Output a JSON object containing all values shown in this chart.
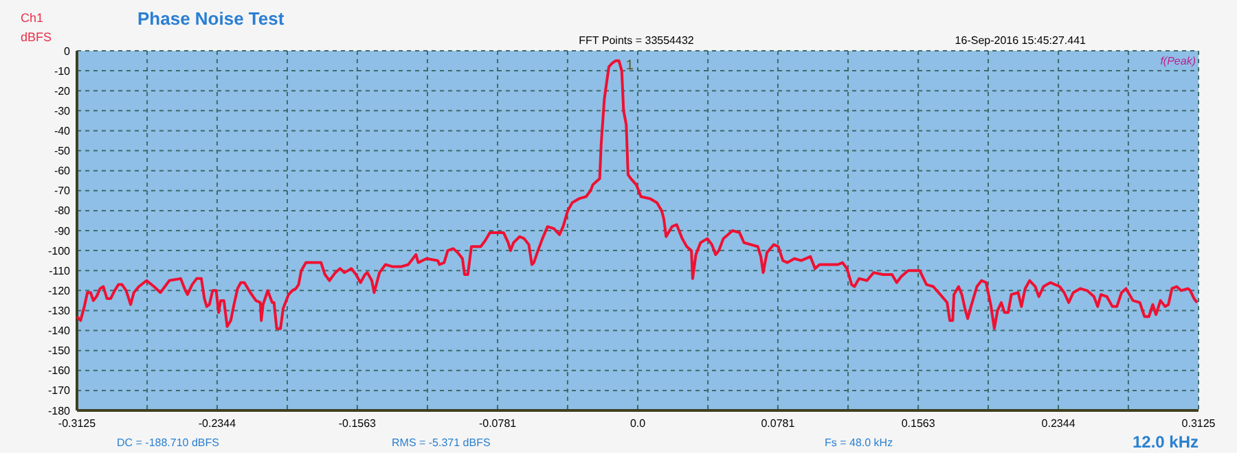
{
  "chart_data": {
    "type": "line",
    "title": "Phase Noise Test",
    "ylabel": "dBFS",
    "annotations": [
      "Ch1",
      "FFT Points = 33554432",
      "16-Sep-2016 15:45:27.441",
      "f(Peak)",
      "DC = -188.710 dBFS",
      "RMS = -5.371 dBFS",
      "Fs = 48.0 kHz",
      "12.0 kHz",
      {
        "text": "1",
        "x": -0.0097,
        "y": -5
      }
    ],
    "xlim": [
      -0.3125,
      0.3125
    ],
    "xticks": [
      -0.3125,
      {
        "value": -0.2734,
        "label": null
      },
      -0.2344,
      {
        "value": -0.1953,
        "label": null
      },
      -0.1563,
      {
        "value": -0.1172,
        "label": null
      },
      -0.0781,
      {
        "value": -0.0391,
        "label": null
      },
      {
        "value": 0,
        "label": "0.0"
      },
      {
        "value": 0.0391,
        "label": null
      },
      0.0781,
      {
        "value": 0.1172,
        "label": null
      },
      0.1563,
      {
        "value": 0.1953,
        "label": null
      },
      0.2344,
      {
        "value": 0.2734,
        "label": null
      },
      0.3125
    ],
    "ylim": [
      -180,
      0
    ],
    "yticks": [
      0,
      -10,
      -20,
      -30,
      -40,
      -50,
      -60,
      -70,
      -80,
      -90,
      -100,
      -110,
      -120,
      -130,
      -140,
      -150,
      -160,
      -170,
      -180
    ],
    "grid": true,
    "marker": "none",
    "line_style": "solid",
    "series": [
      {
        "color": "#ee1133",
        "x": [
          -0.3125,
          -0.3105,
          -0.3084,
          -0.3067,
          -0.3049,
          -0.3034,
          -0.3016,
          -0.2996,
          -0.2978,
          -0.2958,
          -0.2937,
          -0.2915,
          -0.2894,
          -0.2874,
          -0.2851,
          -0.2826,
          -0.2808,
          -0.278,
          -0.2737,
          -0.2696,
          -0.266,
          -0.261,
          -0.2547,
          -0.2521,
          -0.2509,
          -0.2483,
          -0.2458,
          -0.2432,
          -0.2415,
          -0.2402,
          -0.2387,
          -0.2369,
          -0.2349,
          -0.2336,
          -0.2324,
          -0.2306,
          -0.2288,
          -0.2268,
          -0.225,
          -0.223,
          -0.2212,
          -0.2192,
          -0.2159,
          -0.2128,
          -0.2103,
          -0.2098,
          -0.2088,
          -0.2062,
          -0.2037,
          -0.2027,
          -0.2012,
          -0.1991,
          -0.1976,
          -0.1946,
          -0.1925,
          -0.1905,
          -0.189,
          -0.1875,
          -0.1849,
          -0.1765,
          -0.1743,
          -0.1718,
          -0.1685,
          -0.1659,
          -0.1634,
          -0.1596,
          -0.157,
          -0.1545,
          -0.152,
          -0.1507,
          -0.1482,
          -0.1469,
          -0.1454,
          -0.1439,
          -0.1406,
          -0.1368,
          -0.1317,
          -0.1279,
          -0.1253,
          -0.1236,
          -0.1223,
          -0.1177,
          -0.1114,
          -0.1105,
          -0.1079,
          -0.1059,
          -0.1028,
          -0.1003,
          -0.0977,
          -0.0965,
          -0.0947,
          -0.0927,
          -0.0875,
          -0.085,
          -0.0824,
          -0.0748,
          -0.0722,
          -0.0709,
          -0.0692,
          -0.0658,
          -0.0633,
          -0.0607,
          -0.059,
          -0.0579,
          -0.0556,
          -0.0531,
          -0.0503,
          -0.0467,
          -0.0436,
          -0.0416,
          -0.039,
          -0.0365,
          -0.0327,
          -0.0288,
          -0.0263,
          -0.025,
          -0.0212,
          -0.0204,
          -0.0186,
          -0.0161,
          -0.014,
          -0.0122,
          -0.0105,
          -0.0089,
          -0.0079,
          -0.0064,
          -0.0054,
          -0.0038,
          -0.0008,
          0.0018,
          0.0069,
          0.0107,
          0.0133,
          0.0145,
          0.0158,
          0.0191,
          0.0217,
          0.0248,
          0.0273,
          0.0299,
          0.0306,
          0.0324,
          0.035,
          0.0388,
          0.0413,
          0.0434,
          0.0452,
          0.0477,
          0.0528,
          0.0567,
          0.0592,
          0.063,
          0.0669,
          0.0686,
          0.0699,
          0.072,
          0.0758,
          0.0783,
          0.0809,
          0.0834,
          0.0873,
          0.0911,
          0.0962,
          0.0988,
          0.1013,
          0.1115,
          0.1141,
          0.1166,
          0.1192,
          0.1208,
          0.1233,
          0.1277,
          0.1315,
          0.1366,
          0.1417,
          0.1443,
          0.1468,
          0.1507,
          0.1571,
          0.1609,
          0.1647,
          0.1686,
          0.1724,
          0.1739,
          0.1755,
          0.1762,
          0.1788,
          0.1806,
          0.1826,
          0.1839,
          0.1857,
          0.189,
          0.1916,
          0.1941,
          0.1967,
          0.1987,
          0.2005,
          0.2026,
          0.2044,
          0.2064,
          0.2082,
          0.212,
          0.2138,
          0.2159,
          0.2184,
          0.2215,
          0.2235,
          0.2261,
          0.2299,
          0.2351,
          0.2376,
          0.2402,
          0.2427,
          0.2466,
          0.2504,
          0.2542,
          0.2563,
          0.2581,
          0.2614,
          0.2645,
          0.267,
          0.2696,
          0.2721,
          0.276,
          0.2798,
          0.2824,
          0.2849,
          0.287,
          0.2888,
          0.2913,
          0.2939,
          0.2957,
          0.2977,
          0.3003,
          0.3028,
          0.3066,
          0.3079,
          0.31,
          0.3117
        ],
        "values": [
          -133,
          -135,
          -128,
          -121,
          -121,
          -125,
          -123,
          -119,
          -118,
          -124,
          -124,
          -120,
          -117,
          -117,
          -120,
          -127,
          -121,
          -118,
          -115,
          -118,
          -121,
          -115,
          -114,
          -120,
          -122,
          -117,
          -114,
          -114,
          -124,
          -128,
          -127,
          -120,
          -120,
          -131,
          -125,
          -125,
          -138,
          -135,
          -127,
          -119,
          -116,
          -116,
          -121,
          -125,
          -126,
          -135,
          -127,
          -120,
          -126,
          -126,
          -139,
          -139,
          -129,
          -122,
          -120,
          -119,
          -117,
          -110,
          -106,
          -106,
          -112,
          -115,
          -111,
          -109,
          -111,
          -109,
          -112,
          -116,
          -112,
          -111,
          -115,
          -121,
          -116,
          -111,
          -107,
          -108,
          -108,
          -107,
          -104,
          -102,
          -106,
          -104,
          -105,
          -107,
          -106,
          -100,
          -99,
          -101,
          -104,
          -112,
          -112,
          -98,
          -98,
          -95,
          -91,
          -91,
          -96,
          -100,
          -96,
          -93,
          -94,
          -97,
          -107,
          -106,
          -100,
          -94,
          -88,
          -89,
          -92,
          -88,
          -80,
          -76,
          -74,
          -73,
          -70,
          -67,
          -64,
          -47,
          -24,
          -8,
          -6,
          -5,
          -5,
          -10,
          -30,
          -37,
          -62,
          -64,
          -67,
          -73,
          -74,
          -76,
          -80,
          -84,
          -93,
          -88,
          -87,
          -94,
          -98,
          -100,
          -114,
          -102,
          -96,
          -94,
          -97,
          -102,
          -100,
          -94,
          -90,
          -91,
          -96,
          -97,
          -98,
          -103,
          -111,
          -101,
          -97,
          -98,
          -105,
          -106,
          -104,
          -105,
          -103,
          -109,
          -107,
          -107,
          -106,
          -109,
          -117,
          -118,
          -114,
          -115,
          -111,
          -112,
          -112,
          -116,
          -113,
          -110,
          -110,
          -117,
          -118,
          -122,
          -126,
          -135,
          -135,
          -122,
          -118,
          -122,
          -130,
          -134,
          -128,
          -118,
          -115,
          -116,
          -127,
          -139,
          -130,
          -126,
          -131,
          -131,
          -122,
          -121,
          -128,
          -119,
          -115,
          -118,
          -123,
          -118,
          -116,
          -118,
          -121,
          -126,
          -121,
          -119,
          -120,
          -123,
          -128,
          -122,
          -123,
          -128,
          -128,
          -121,
          -119,
          -125,
          -126,
          -133,
          -133,
          -127,
          -132,
          -125,
          -128,
          -127,
          -119,
          -118,
          -120,
          -119,
          -120,
          -124,
          -126
        ]
      }
    ]
  }
}
